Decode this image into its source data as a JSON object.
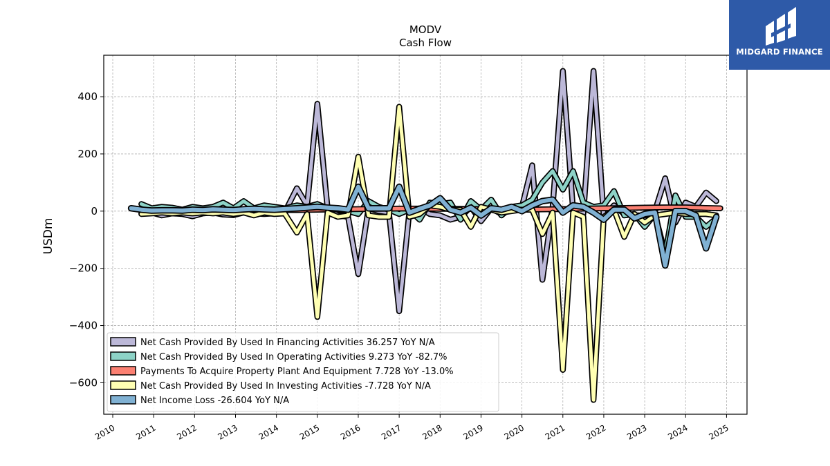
{
  "chart_data": {
    "type": "line",
    "title": "MODV",
    "subtitle": "Cash Flow",
    "ylabel": "USDm",
    "xlabel": "",
    "ylim": [
      -710,
      545
    ],
    "xlim": [
      2009.78,
      2025.5
    ],
    "yticks": [
      400,
      200,
      0,
      -200,
      -400,
      -600
    ],
    "ytick_labels": [
      "400",
      "200",
      "0",
      "−200",
      "−400",
      "−600"
    ],
    "xticks": [
      2010,
      2011,
      2012,
      2013,
      2014,
      2015,
      2016,
      2017,
      2018,
      2019,
      2020,
      2021,
      2022,
      2023,
      2024,
      2025
    ],
    "xtick_labels": [
      "2010",
      "2011",
      "2012",
      "2013",
      "2014",
      "2015",
      "2016",
      "2017",
      "2018",
      "2019",
      "2020",
      "2021",
      "2022",
      "2023",
      "2024",
      "2025"
    ],
    "grid": true,
    "legend_position": "lower-left",
    "series": [
      {
        "name": "Net Cash Provided By Used In Financing Activities",
        "legend": "Net Cash Provided By Used In Financing Activities  36.257 YoY N/A",
        "color": "#bcb8d8",
        "lw": 5,
        "x": [
          2010.7,
          2010.95,
          2011.2,
          2011.45,
          2011.7,
          2011.95,
          2012.2,
          2012.45,
          2012.7,
          2012.95,
          2013.2,
          2013.45,
          2013.7,
          2013.95,
          2014.2,
          2014.5,
          2014.75,
          2015.0,
          2015.25,
          2015.5,
          2015.75,
          2016.0,
          2016.25,
          2016.5,
          2016.75,
          2017.0,
          2017.25,
          2017.5,
          2017.75,
          2018.0,
          2018.25,
          2018.5,
          2018.75,
          2019.0,
          2019.25,
          2019.5,
          2019.75,
          2020.0,
          2020.25,
          2020.5,
          2020.75,
          2021.0,
          2021.25,
          2021.5,
          2021.75,
          2022.0,
          2022.25,
          2022.5,
          2022.75,
          2023.0,
          2023.25,
          2023.5,
          2023.75,
          2024.0,
          2024.25,
          2024.5,
          2024.75
        ],
        "y": [
          -8,
          -5,
          -15,
          -8,
          -10,
          -18,
          -8,
          -5,
          -12,
          -14,
          -5,
          -8,
          -10,
          -8,
          -5,
          80,
          20,
          375,
          10,
          -15,
          -20,
          -220,
          10,
          0,
          -5,
          -350,
          0,
          10,
          -10,
          -15,
          -30,
          -20,
          15,
          -35,
          10,
          -10,
          5,
          15,
          160,
          -240,
          15,
          490,
          0,
          -10,
          490,
          -20,
          20,
          -10,
          -15,
          -15,
          0,
          115,
          -40,
          30,
          15,
          65,
          35
        ]
      },
      {
        "name": "Net Cash Provided By Used In Operating Activities",
        "legend": "Net Cash Provided By Used In Operating Activities  9.273 YoY -82.7%",
        "color": "#8dd3c7",
        "lw": 5,
        "x": [
          2010.7,
          2010.95,
          2011.2,
          2011.45,
          2011.7,
          2011.95,
          2012.2,
          2012.45,
          2012.7,
          2012.95,
          2013.2,
          2013.45,
          2013.7,
          2013.95,
          2014.2,
          2014.5,
          2014.75,
          2015.0,
          2015.25,
          2015.5,
          2015.75,
          2016.0,
          2016.25,
          2016.5,
          2016.75,
          2017.0,
          2017.25,
          2017.5,
          2017.75,
          2018.0,
          2018.25,
          2018.5,
          2018.75,
          2019.0,
          2019.25,
          2019.5,
          2019.75,
          2020.0,
          2020.25,
          2020.5,
          2020.75,
          2021.0,
          2021.25,
          2021.5,
          2021.75,
          2022.0,
          2022.25,
          2022.5,
          2022.75,
          2023.0,
          2023.25,
          2023.5,
          2023.75,
          2024.0,
          2024.25,
          2024.5,
          2024.75
        ],
        "y": [
          25,
          10,
          15,
          12,
          5,
          15,
          10,
          15,
          30,
          10,
          35,
          10,
          20,
          15,
          10,
          20,
          15,
          25,
          10,
          5,
          0,
          -10,
          35,
          15,
          5,
          -10,
          5,
          -30,
          30,
          25,
          30,
          -30,
          35,
          5,
          40,
          -15,
          15,
          20,
          40,
          100,
          140,
          75,
          140,
          30,
          15,
          20,
          70,
          -15,
          -10,
          -55,
          -10,
          -150,
          55,
          -20,
          -20,
          -55,
          -25
        ]
      },
      {
        "name": "Payments To Acquire Property Plant And Equipment",
        "legend": "Payments To Acquire Property Plant And Equipment  7.728 YoY -13.0%",
        "color": "#fb8072",
        "lw": 5,
        "x": [
          2010.7,
          2011.5,
          2012.5,
          2013.5,
          2014.5,
          2015.0,
          2015.5,
          2016.0,
          2016.5,
          2017.0,
          2017.5,
          2018.0,
          2018.5,
          2019.0,
          2019.5,
          2020.0,
          2020.5,
          2021.0,
          2021.5,
          2022.0,
          2022.5,
          2023.0,
          2023.5,
          2024.0,
          2024.5,
          2024.85
        ],
        "y": [
          2,
          3,
          3,
          4,
          4,
          5,
          6,
          7,
          8,
          9,
          9,
          8,
          8,
          7,
          6,
          5,
          6,
          7,
          9,
          10,
          11,
          12,
          13,
          13,
          11,
          10
        ]
      },
      {
        "name": "Net Cash Provided By Used In Investing Activities",
        "legend": "Net Cash Provided By Used In Investing Activities  -7.728 YoY N/A",
        "color": "#ffffb3",
        "lw": 5,
        "x": [
          2010.7,
          2010.95,
          2011.2,
          2011.45,
          2011.7,
          2011.95,
          2012.2,
          2012.45,
          2012.7,
          2012.95,
          2013.2,
          2013.45,
          2013.7,
          2013.95,
          2014.2,
          2014.5,
          2014.75,
          2015.0,
          2015.25,
          2015.5,
          2015.75,
          2016.0,
          2016.25,
          2016.5,
          2016.75,
          2017.0,
          2017.25,
          2017.5,
          2017.75,
          2018.0,
          2018.25,
          2018.5,
          2018.75,
          2019.0,
          2019.25,
          2019.5,
          2019.75,
          2020.0,
          2020.25,
          2020.5,
          2020.75,
          2021.0,
          2021.25,
          2021.5,
          2021.75,
          2022.0,
          2022.25,
          2022.5,
          2022.75,
          2023.0,
          2023.25,
          2023.5,
          2023.75,
          2024.0,
          2024.25,
          2024.5,
          2024.75
        ],
        "y": [
          -10,
          -8,
          -5,
          -8,
          -5,
          -8,
          -5,
          -8,
          -5,
          -10,
          -5,
          -15,
          -5,
          -10,
          -8,
          -75,
          -10,
          -370,
          -5,
          -20,
          -15,
          190,
          -15,
          -20,
          -20,
          365,
          -20,
          -10,
          20,
          15,
          5,
          5,
          -55,
          15,
          5,
          -5,
          0,
          5,
          5,
          -80,
          -5,
          -555,
          -5,
          -20,
          -660,
          -20,
          5,
          -90,
          -10,
          -40,
          -15,
          -10,
          -5,
          -10,
          -10,
          -10,
          -15
        ]
      },
      {
        "name": "Net Income Loss",
        "legend": "Net Income Loss  -26.604 YoY N/A",
        "color": "#80b1d3",
        "lw": 6,
        "x": [
          2010.45,
          2010.7,
          2010.95,
          2011.2,
          2011.45,
          2011.7,
          2011.95,
          2012.2,
          2012.45,
          2012.7,
          2012.95,
          2013.2,
          2013.45,
          2013.7,
          2013.95,
          2014.2,
          2014.5,
          2014.75,
          2015.0,
          2015.25,
          2015.5,
          2015.75,
          2016.0,
          2016.25,
          2016.5,
          2016.75,
          2017.0,
          2017.25,
          2017.5,
          2017.75,
          2018.0,
          2018.25,
          2018.5,
          2018.75,
          2019.0,
          2019.25,
          2019.5,
          2019.75,
          2020.0,
          2020.25,
          2020.5,
          2020.75,
          2021.0,
          2021.25,
          2021.5,
          2021.75,
          2022.0,
          2022.25,
          2022.5,
          2022.75,
          2023.0,
          2023.25,
          2023.5,
          2023.75,
          2024.0,
          2024.25,
          2024.5,
          2024.75
        ],
        "y": [
          10,
          5,
          2,
          3,
          3,
          2,
          5,
          4,
          6,
          5,
          4,
          6,
          8,
          6,
          5,
          7,
          10,
          12,
          15,
          12,
          10,
          5,
          85,
          10,
          10,
          10,
          85,
          -5,
          8,
          20,
          45,
          5,
          -5,
          12,
          -15,
          10,
          5,
          15,
          0,
          20,
          35,
          40,
          -5,
          20,
          15,
          -5,
          -30,
          5,
          5,
          -25,
          -10,
          -5,
          -190,
          0,
          0,
          -15,
          -130,
          -20
        ]
      }
    ]
  },
  "logo": {
    "text": "MIDGARD FINANCE"
  }
}
